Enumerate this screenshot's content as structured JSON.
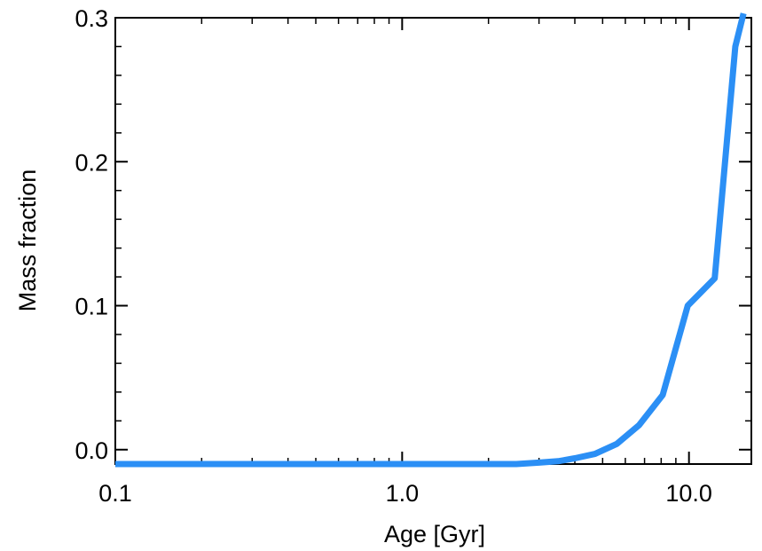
{
  "chart_data": {
    "type": "line",
    "title": "",
    "xlabel": "Age [Gyr]",
    "ylabel": "Mass fraction",
    "xscale": "log",
    "xlim": [
      0.1,
      16.5
    ],
    "ylim": [
      -0.01,
      0.3
    ],
    "grid": false,
    "legend": "none",
    "x_ticks": [
      {
        "value": 0.1,
        "label": "0.1"
      },
      {
        "value": 1.0,
        "label": "1.0"
      },
      {
        "value": 10.0,
        "label": "10.0"
      }
    ],
    "y_ticks": [
      {
        "value": 0.0,
        "label": "0.0"
      },
      {
        "value": 0.1,
        "label": "0.1"
      },
      {
        "value": 0.2,
        "label": "0.2"
      },
      {
        "value": 0.3,
        "label": "0.3"
      }
    ],
    "series": [
      {
        "color": "#2b8ff5",
        "x": [
          0.1,
          0.5,
          1.0,
          1.5,
          2.0,
          2.5,
          3.0,
          3.5,
          4.0,
          4.7,
          5.6,
          6.7,
          8.1,
          9.9,
          12.3,
          14.5,
          15.5
        ],
        "y": [
          -0.01,
          -0.01,
          -0.01,
          -0.01,
          -0.01,
          -0.01,
          -0.009,
          -0.008,
          -0.006,
          -0.003,
          0.004,
          0.017,
          0.038,
          0.1,
          0.119,
          0.28,
          0.303
        ]
      }
    ]
  }
}
